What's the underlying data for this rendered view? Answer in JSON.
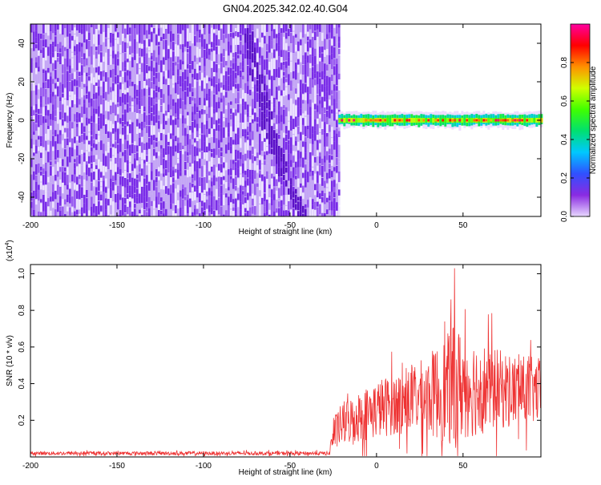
{
  "chart_data": [
    {
      "type": "heatmap",
      "title": "GN04.2025.342.02.40.G04",
      "xlabel": "Height of straight line (km)",
      "ylabel": "Frequency (Hz)",
      "xlim": [
        -200,
        95
      ],
      "ylim": [
        -50,
        50
      ],
      "x_ticks": [
        -200,
        -150,
        -100,
        -50,
        0,
        50
      ],
      "x_tick_labels": [
        "-200",
        "-150",
        "-100",
        "-50",
        "0",
        "50"
      ],
      "y_ticks": [
        -40,
        -20,
        0,
        20,
        40
      ],
      "y_tick_labels": [
        "-40",
        "-20",
        "0",
        "20",
        "40"
      ],
      "noise_region_x": [
        -200,
        -22
      ],
      "signal_band": {
        "x": [
          -22,
          95
        ],
        "frequency_center": 0,
        "frequency_halfwidth": 4
      },
      "dark_streak": [
        [
          -75,
          48
        ],
        [
          -72,
          30
        ],
        [
          -67,
          18
        ],
        [
          -64,
          5
        ],
        [
          -64,
          0
        ],
        [
          -60,
          -10
        ],
        [
          -54,
          -25
        ],
        [
          -47,
          -40
        ],
        [
          -42,
          -50
        ]
      ],
      "colorbar": {
        "label": "Normalized spectral amplitude",
        "range": [
          0,
          1
        ],
        "ticks": [
          0.0,
          0.2,
          0.4,
          0.6,
          0.8
        ],
        "tick_labels": [
          "0.0",
          "0.2",
          "0.4",
          "0.6",
          "0.8"
        ],
        "colors": [
          "#e8d8ff",
          "#8a2be2",
          "#3050ff",
          "#00c8ff",
          "#00e070",
          "#40ff00",
          "#d0ff00",
          "#ff9000",
          "#ff0000",
          "#ff00a0"
        ]
      }
    },
    {
      "type": "line",
      "xlabel": "Height of straight line (km)",
      "ylabel": "SNR (10 * v/v)",
      "y_scale_label": "(x10",
      "y_scale_exp": "4",
      "y_scale_close": ")",
      "xlim": [
        -200,
        95
      ],
      "ylim": [
        0,
        1.05
      ],
      "x_ticks": [
        -200,
        -150,
        -100,
        -50,
        0,
        50
      ],
      "x_tick_labels": [
        "-200",
        "-150",
        "-100",
        "-50",
        "0",
        "50"
      ],
      "y_ticks": [
        0.2,
        0.4,
        0.6,
        0.8,
        1.0
      ],
      "y_tick_labels": [
        "0.2",
        "0.4",
        "0.6",
        "0.8",
        "1.0"
      ],
      "series": [
        {
          "name": "SNR",
          "color": "#ee3333",
          "envelope_x": [
            -200,
            -27,
            -26,
            -20,
            -10,
            0,
            10,
            20,
            30,
            40,
            45,
            50,
            60,
            70,
            80,
            95
          ],
          "envelope_base": [
            0.02,
            0.02,
            0.1,
            0.18,
            0.22,
            0.26,
            0.29,
            0.31,
            0.34,
            0.36,
            0.38,
            0.39,
            0.38,
            0.37,
            0.36,
            0.36
          ],
          "envelope_spread": [
            0.01,
            0.01,
            0.08,
            0.12,
            0.14,
            0.16,
            0.17,
            0.18,
            0.22,
            0.3,
            0.34,
            0.3,
            0.26,
            0.22,
            0.2,
            0.18
          ],
          "peak_x": 45,
          "peak_y": 1.03
        }
      ]
    }
  ]
}
